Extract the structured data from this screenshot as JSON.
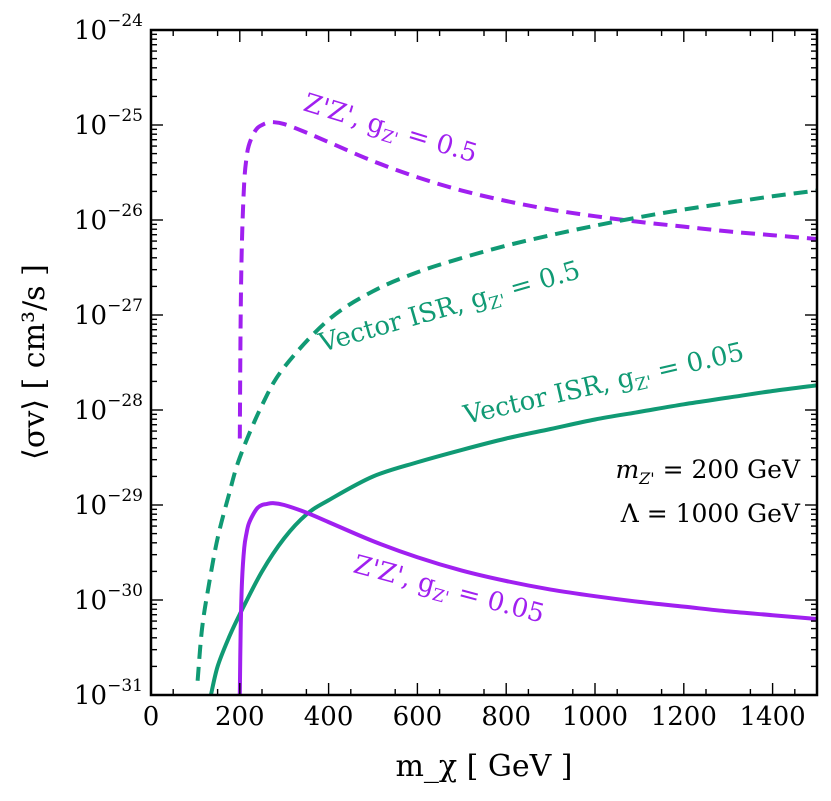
{
  "chart_data": {
    "type": "line",
    "xlabel": "m_χ [ GeV ]",
    "ylabel": "⟨σv⟩ [ cm³/s ]",
    "xlim": [
      0,
      1500
    ],
    "ylim_log10": [
      -31,
      -24
    ],
    "yscale": "log",
    "grid": false,
    "x_ticks": [
      0,
      200,
      400,
      600,
      800,
      1000,
      1200,
      1400
    ],
    "x_tick_labels": [
      "0",
      "200",
      "400",
      "600",
      "800",
      "1000",
      "1200",
      "1400"
    ],
    "y_ticks_log10": [
      -31,
      -30,
      -29,
      -28,
      -27,
      -26,
      -25,
      -24
    ],
    "y_tick_base": "10",
    "y_tick_exponents": [
      "−31",
      "−30",
      "−29",
      "−28",
      "−27",
      "−26",
      "−25",
      "−24"
    ],
    "colors": {
      "purple": "#a020f0",
      "green": "#109a74"
    },
    "series": [
      {
        "name": "Z'Z', g_Z' = 0.5",
        "style": "dashed",
        "color": "purple",
        "x": [
          200,
          202,
          205,
          210,
          215,
          220,
          230,
          240,
          250,
          260,
          275,
          300,
          350,
          400,
          500,
          600,
          700,
          800,
          900,
          1000,
          1100,
          1200,
          1300,
          1400,
          1500
        ],
        "log10_y": [
          -28.3,
          -27.0,
          -26.2,
          -25.6,
          -25.35,
          -25.22,
          -25.1,
          -25.03,
          -25.0,
          -24.98,
          -24.97,
          -24.99,
          -25.08,
          -25.18,
          -25.38,
          -25.55,
          -25.69,
          -25.8,
          -25.89,
          -25.96,
          -26.02,
          -26.07,
          -26.12,
          -26.16,
          -26.2
        ]
      },
      {
        "name": "Vector ISR, g_Z' = 0.5",
        "style": "dashed",
        "color": "green",
        "x": [
          105,
          115,
          130,
          150,
          175,
          200,
          250,
          300,
          400,
          500,
          600,
          700,
          800,
          900,
          1000,
          1100,
          1200,
          1300,
          1400,
          1500
        ],
        "log10_y": [
          -30.85,
          -30.3,
          -29.85,
          -29.35,
          -28.9,
          -28.5,
          -27.95,
          -27.55,
          -27.05,
          -26.75,
          -26.55,
          -26.4,
          -26.27,
          -26.16,
          -26.06,
          -25.97,
          -25.89,
          -25.82,
          -25.75,
          -25.69
        ]
      },
      {
        "name": "Vector ISR, g_Z' = 0.05",
        "style": "solid",
        "color": "green",
        "x": [
          135,
          150,
          175,
          200,
          250,
          300,
          350,
          400,
          500,
          600,
          700,
          800,
          900,
          1000,
          1100,
          1200,
          1300,
          1400,
          1500
        ],
        "log10_y": [
          -31.0,
          -30.7,
          -30.4,
          -30.15,
          -29.7,
          -29.35,
          -29.1,
          -28.95,
          -28.7,
          -28.55,
          -28.42,
          -28.3,
          -28.2,
          -28.1,
          -28.02,
          -27.94,
          -27.87,
          -27.8,
          -27.74
        ]
      },
      {
        "name": "Z'Z', g_Z' = 0.05",
        "style": "solid",
        "color": "purple",
        "x": [
          200,
          202,
          205,
          210,
          215,
          220,
          230,
          240,
          250,
          260,
          275,
          300,
          350,
          400,
          500,
          600,
          700,
          800,
          900,
          1000,
          1100,
          1200,
          1300,
          1400,
          1500
        ],
        "log10_y": [
          -31.0,
          -30.3,
          -29.8,
          -29.45,
          -29.3,
          -29.2,
          -29.1,
          -29.03,
          -29.0,
          -28.99,
          -28.98,
          -29.0,
          -29.08,
          -29.18,
          -29.38,
          -29.55,
          -29.69,
          -29.8,
          -29.89,
          -29.96,
          -30.02,
          -30.07,
          -30.12,
          -30.16,
          -30.2
        ]
      }
    ],
    "annotations": [
      {
        "text": "Z'Z', g",
        "sub": "Z'",
        "tail": " = 0.5",
        "color": "purple"
      },
      {
        "text": "Vector ISR, g",
        "sub": "Z'",
        "tail": " = 0.5",
        "color": "green"
      },
      {
        "text": "Vector ISR, g",
        "sub": "Z'",
        "tail": " = 0.05",
        "color": "green"
      },
      {
        "text": "Z'Z', g",
        "sub": "Z'",
        "tail": " = 0.05",
        "color": "purple"
      }
    ],
    "info_box": {
      "line1_var": "m",
      "line1_sub": "Z'",
      "line1_rest": " = 200 GeV",
      "line2": "Λ = 1000 GeV"
    }
  }
}
